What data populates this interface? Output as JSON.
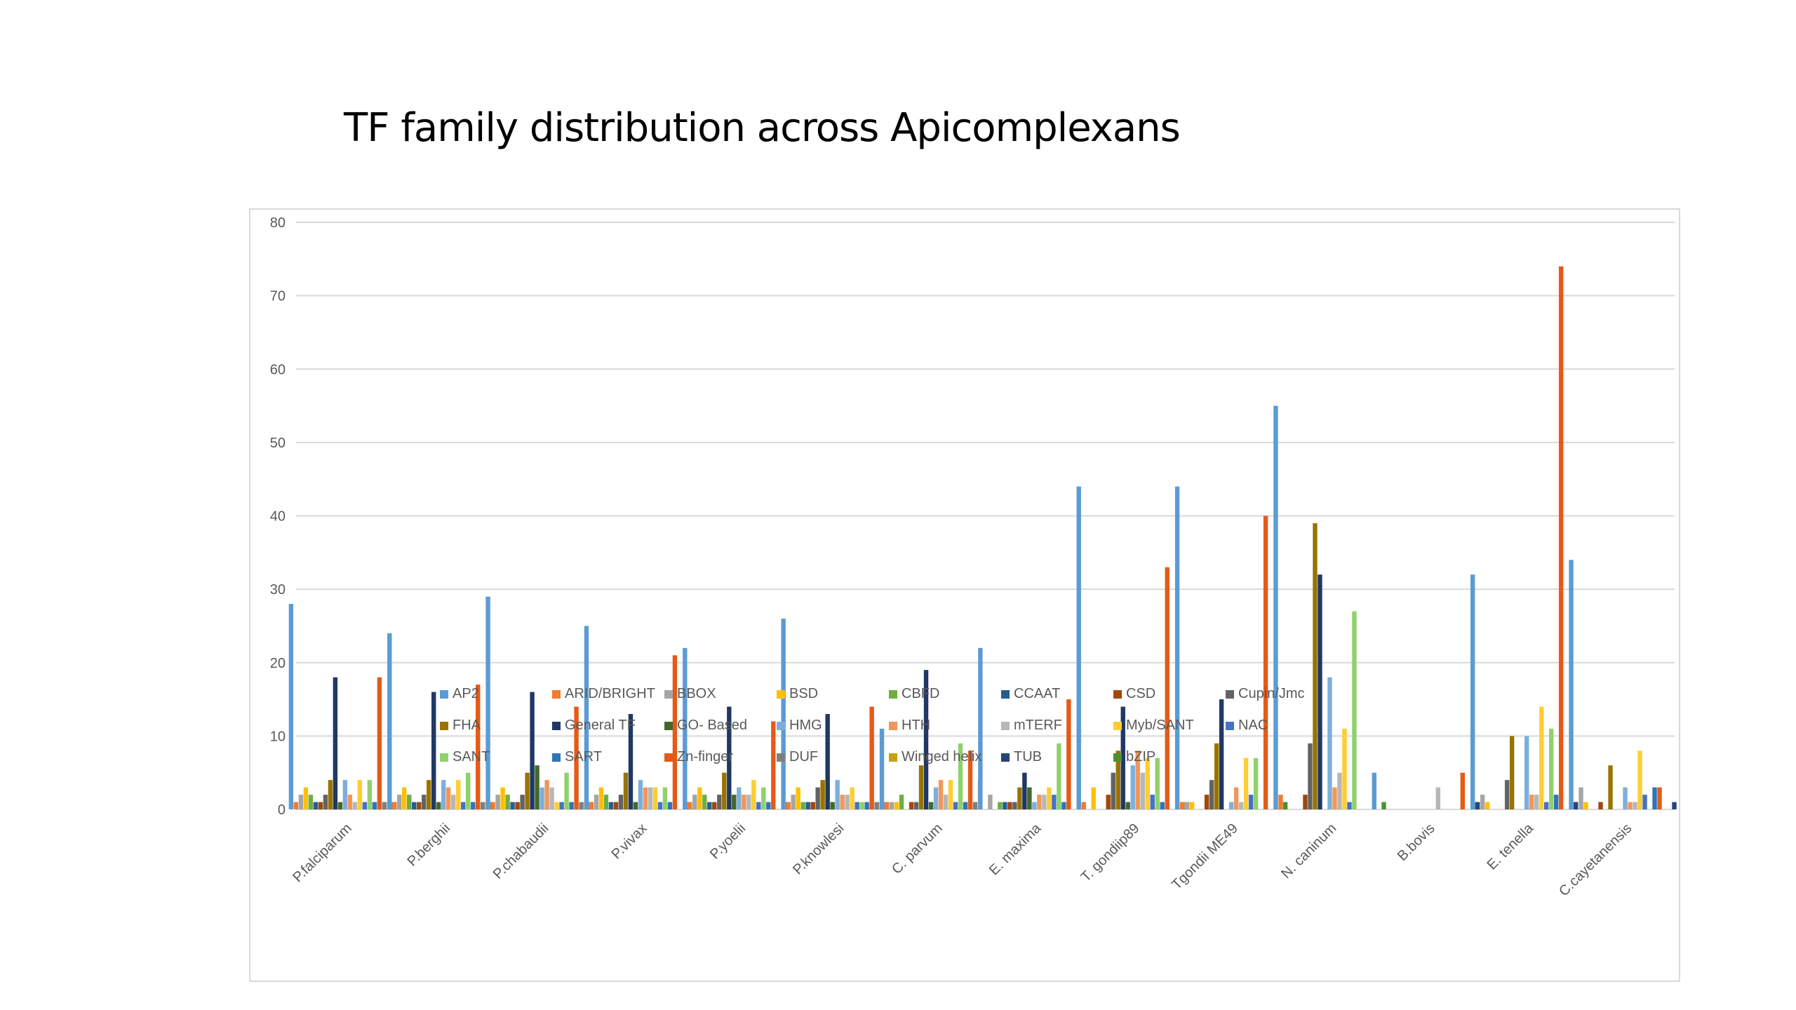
{
  "title": "TF family distribution across Apicomplexans",
  "chart_data": {
    "type": "bar",
    "title": "TF family distribution across Apicomplexans",
    "xlabel": "",
    "ylabel": "",
    "ylim": [
      0,
      80
    ],
    "yticks": [
      0,
      10,
      20,
      30,
      40,
      50,
      60,
      70,
      80
    ],
    "grid": true,
    "legend": "bottom",
    "categories": [
      "P.falciparum",
      "P.berghii",
      "P.chabaudii",
      "P.vivax",
      "P.yoelii",
      "P.knowlesi",
      "C. parvum",
      "E. maxima",
      "T. gondiip89",
      "Tgondii ME49",
      "N. caninum",
      "B.bovis",
      "E. tenella",
      "C.cayetanensis"
    ],
    "series": [
      {
        "name": "AP2",
        "color": "#5b9bd5",
        "values": [
          28,
          24,
          29,
          25,
          22,
          26,
          11,
          22,
          44,
          44,
          55,
          5,
          32,
          34
        ]
      },
      {
        "name": "ARID/BRIGHT",
        "color": "#ed7d31",
        "values": [
          1,
          1,
          1,
          1,
          1,
          1,
          1,
          0,
          1,
          1,
          2,
          0,
          0,
          0
        ]
      },
      {
        "name": "BBOX",
        "color": "#a5a5a5",
        "values": [
          2,
          2,
          2,
          2,
          2,
          2,
          1,
          2,
          0,
          1,
          0,
          0,
          2,
          3
        ]
      },
      {
        "name": "BSD",
        "color": "#ffc000",
        "values": [
          3,
          3,
          3,
          3,
          3,
          3,
          1,
          0,
          3,
          1,
          0,
          0,
          1,
          1
        ]
      },
      {
        "name": "CBFD",
        "color": "#70ad47",
        "values": [
          2,
          2,
          2,
          2,
          2,
          1,
          2,
          1,
          0,
          0,
          0,
          0,
          0,
          0
        ]
      },
      {
        "name": "CCAAT",
        "color": "#255e91",
        "values": [
          1,
          1,
          1,
          1,
          1,
          1,
          0,
          1,
          0,
          0,
          0,
          0,
          0,
          0
        ]
      },
      {
        "name": "CSD",
        "color": "#9e480e",
        "values": [
          1,
          1,
          1,
          1,
          1,
          1,
          1,
          1,
          2,
          2,
          2,
          0,
          0,
          1
        ]
      },
      {
        "name": "Cupin/Jmc",
        "color": "#636363",
        "values": [
          2,
          2,
          2,
          2,
          2,
          3,
          1,
          1,
          5,
          4,
          9,
          0,
          4,
          0
        ]
      },
      {
        "name": "FHA",
        "color": "#997300",
        "values": [
          4,
          4,
          5,
          5,
          5,
          4,
          6,
          3,
          8,
          9,
          39,
          0,
          10,
          6
        ]
      },
      {
        "name": "General TF",
        "color": "#203864",
        "values": [
          18,
          16,
          16,
          13,
          14,
          13,
          19,
          5,
          14,
          15,
          32,
          0,
          0,
          0
        ]
      },
      {
        "name": "GO- Based",
        "color": "#43682b",
        "values": [
          1,
          1,
          6,
          1,
          2,
          1,
          1,
          3,
          1,
          0,
          0,
          0,
          0,
          0
        ]
      },
      {
        "name": "HMG",
        "color": "#7cafdd",
        "values": [
          4,
          4,
          3,
          4,
          3,
          4,
          3,
          1,
          6,
          1,
          18,
          0,
          10,
          3
        ]
      },
      {
        "name": "HTH",
        "color": "#f1975a",
        "values": [
          2,
          3,
          4,
          3,
          2,
          2,
          4,
          2,
          8,
          3,
          3,
          0,
          2,
          1
        ]
      },
      {
        "name": "mTERF",
        "color": "#b7b7b7",
        "values": [
          1,
          2,
          3,
          3,
          2,
          2,
          2,
          2,
          5,
          1,
          5,
          3,
          2,
          1
        ]
      },
      {
        "name": "Myb/SANT",
        "color": "#ffcd33",
        "values": [
          4,
          4,
          1,
          3,
          4,
          3,
          4,
          3,
          7,
          7,
          11,
          0,
          14,
          8
        ]
      },
      {
        "name": "NAC",
        "color": "#4472c4",
        "values": [
          1,
          1,
          1,
          1,
          1,
          1,
          1,
          2,
          2,
          2,
          1,
          0,
          1,
          2
        ]
      },
      {
        "name": "SANT",
        "color": "#8fd16b",
        "values": [
          4,
          5,
          5,
          3,
          3,
          1,
          9,
          9,
          7,
          7,
          27,
          0,
          11,
          0
        ]
      },
      {
        "name": "SART",
        "color": "#2e75b6",
        "values": [
          1,
          1,
          1,
          1,
          1,
          1,
          1,
          1,
          1,
          0,
          0,
          0,
          2,
          3
        ]
      },
      {
        "name": "Zn-finger",
        "color": "#e55a17",
        "values": [
          18,
          17,
          14,
          21,
          12,
          14,
          8,
          15,
          33,
          40,
          0,
          5,
          74,
          3
        ]
      },
      {
        "name": "DUF",
        "color": "#7f7f7f",
        "values": [
          1,
          1,
          1,
          0,
          0,
          1,
          1,
          0,
          0,
          0,
          0,
          0,
          0,
          0
        ]
      },
      {
        "name": "Winged helix",
        "color": "#c9a00f",
        "values": [
          1,
          1,
          1,
          0,
          0,
          1,
          4,
          0,
          0,
          0,
          0,
          0,
          0,
          0
        ]
      },
      {
        "name": "TUB",
        "color": "#264478",
        "values": [
          1,
          1,
          1,
          1,
          1,
          1,
          0,
          0,
          0,
          0,
          0,
          1,
          1,
          1
        ]
      },
      {
        "name": "bZIP",
        "color": "#4e8f2f",
        "values": [
          0,
          0,
          0,
          0,
          0,
          0,
          0,
          0,
          1,
          1,
          1,
          1,
          0,
          0
        ]
      }
    ]
  }
}
